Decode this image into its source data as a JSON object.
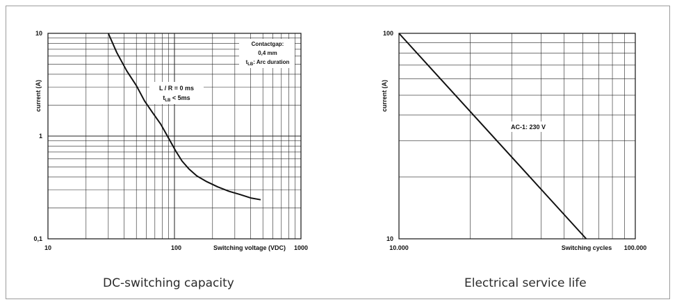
{
  "captions": {
    "left": "DC-switching capacity",
    "right": "Electrical service life"
  },
  "chart_data": [
    {
      "type": "line",
      "title": "",
      "xlabel": "Switching voltage (VDC)",
      "ylabel": "current (A)",
      "x_scale": "log",
      "y_scale": "log",
      "xlim": [
        10,
        1000
      ],
      "ylim": [
        0.1,
        10
      ],
      "x_ticks": [
        "10",
        "100",
        "1000"
      ],
      "y_ticks": [
        "0,1",
        "1",
        "10"
      ],
      "grid": true,
      "series": [
        {
          "x": [
            30,
            35,
            42,
            50,
            58,
            67,
            78,
            90,
            102,
            115,
            130,
            150,
            180,
            220,
            270,
            330,
            400,
            480
          ],
          "y": [
            10,
            6.5,
            4.3,
            3.1,
            2.2,
            1.7,
            1.3,
            0.95,
            0.72,
            0.57,
            0.48,
            0.41,
            0.36,
            0.32,
            0.29,
            0.27,
            0.25,
            0.24
          ]
        }
      ],
      "annotations": [
        {
          "lines": [
            "L / R = 0 ms",
            "tLB < 5ms"
          ]
        },
        {
          "lines": [
            "Contactgap:",
            "0,4 mm",
            "tLB: Arc duration"
          ]
        }
      ]
    },
    {
      "type": "line",
      "title": "",
      "xlabel": "Switching cycles",
      "ylabel": "current (A)",
      "x_scale": "log",
      "y_scale": "log",
      "xlim": [
        10000,
        100000
      ],
      "ylim": [
        10,
        100
      ],
      "x_ticks": [
        "10.000",
        "100.000"
      ],
      "y_ticks": [
        "10",
        "100"
      ],
      "grid": true,
      "series": [
        {
          "x": [
            10000,
            62000
          ],
          "y": [
            100,
            10
          ]
        }
      ],
      "annotations": [
        {
          "lines": [
            "AC-1: 230 V"
          ]
        }
      ]
    }
  ]
}
